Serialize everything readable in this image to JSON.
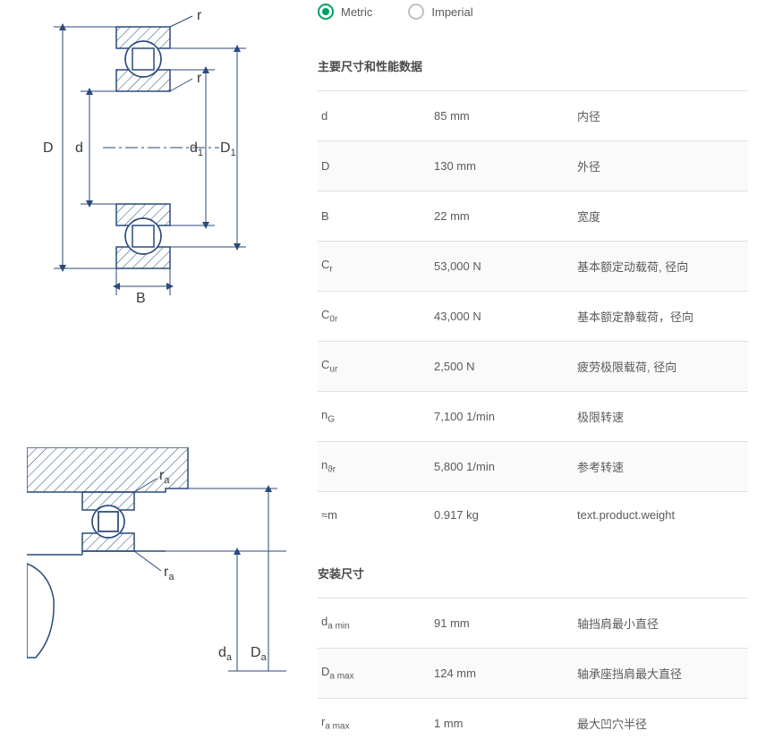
{
  "units": {
    "metric": "Metric",
    "imperial": "Imperial",
    "selected": "metric"
  },
  "sections": {
    "main_title": "主要尺寸和性能数据",
    "mounting_title": "安装尺寸"
  },
  "specs": [
    {
      "symbol": "d",
      "sub": "",
      "value": "85 mm",
      "desc": "内径"
    },
    {
      "symbol": "D",
      "sub": "",
      "value": "130 mm",
      "desc": "外径"
    },
    {
      "symbol": "B",
      "sub": "",
      "value": "22 mm",
      "desc": "宽度"
    },
    {
      "symbol": "C",
      "sub": "r",
      "value": "53,000 N",
      "desc": "基本额定动载荷, 径向"
    },
    {
      "symbol": "C",
      "sub": "0r",
      "value": "43,000 N",
      "desc": "基本额定静载荷，径向"
    },
    {
      "symbol": "C",
      "sub": "ur",
      "value": "2,500 N",
      "desc": "疲劳极限载荷, 径向"
    },
    {
      "symbol": "n",
      "sub": "G",
      "value": "7,100 1/min",
      "desc": "极限转速"
    },
    {
      "symbol": "n",
      "sub": "ϑr",
      "value": "5,800 1/min",
      "desc": "参考转速"
    },
    {
      "symbol": "≈m",
      "sub": "",
      "value": "0.917 kg",
      "desc": "text.product.weight"
    }
  ],
  "mounting": [
    {
      "symbol": "d",
      "sub": "a min",
      "value": "91 mm",
      "desc": "轴挡肩最小直径"
    },
    {
      "symbol": "D",
      "sub": "a max",
      "value": "124 mm",
      "desc": "轴承座挡肩最大直径"
    },
    {
      "symbol": "r",
      "sub": "a max",
      "value": "1 mm",
      "desc": "最大凹穴半径"
    }
  ],
  "diagram1_labels": {
    "r1": "r",
    "r2": "r",
    "D": "D",
    "d": "d",
    "d1": "d",
    "d1_sub": "1",
    "D1": "D",
    "D1_sub": "1",
    "B": "B"
  },
  "diagram2_labels": {
    "ra1": "r",
    "ra1_sub": "a",
    "ra2": "r",
    "ra2_sub": "a",
    "da": "d",
    "da_sub": "a",
    "Da": "D",
    "Da_sub": "a"
  },
  "colors": {
    "line": "#2a4a7a",
    "hatch": "#2a4a7a",
    "accent": "#00a060",
    "border": "#e0e0e0"
  }
}
